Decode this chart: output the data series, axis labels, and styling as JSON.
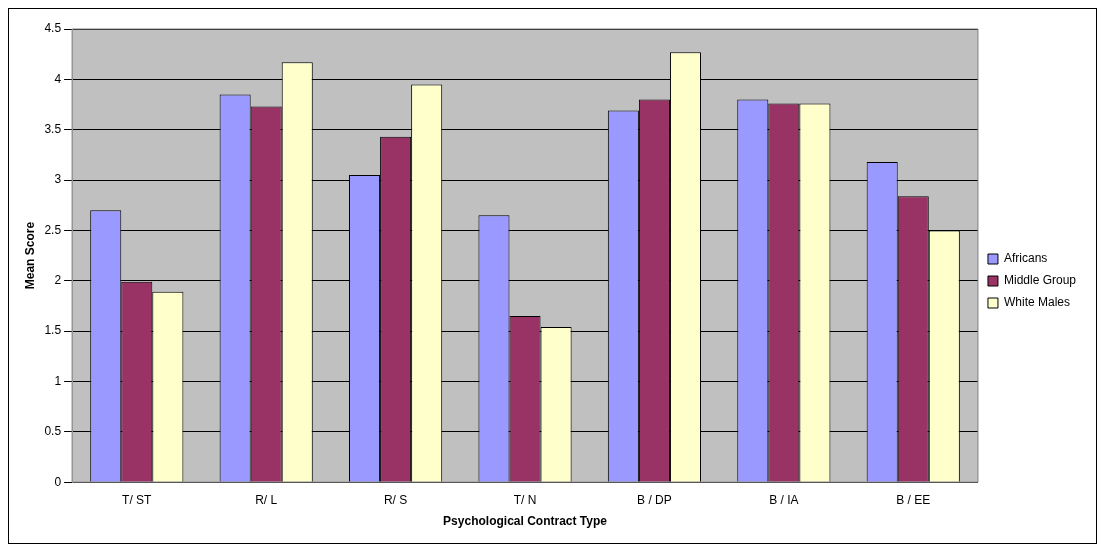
{
  "chart_data": {
    "type": "bar",
    "xlabel": "Psychological Contract Type",
    "ylabel": "Mean Score",
    "categories": [
      "T/ ST",
      "R/ L",
      "R/ S",
      "T/ N",
      "B / DP",
      "B / IA",
      "B / EE"
    ],
    "series": [
      {
        "name": "Africans",
        "color": "#9999ff",
        "values": [
          2.7,
          3.85,
          3.05,
          2.65,
          3.69,
          3.8,
          3.18
        ]
      },
      {
        "name": "Middle Group",
        "color": "#993366",
        "values": [
          1.99,
          3.73,
          3.43,
          1.65,
          3.8,
          3.76,
          2.84
        ]
      },
      {
        "name": "White Males",
        "color": "#ffffcc",
        "values": [
          1.89,
          4.17,
          3.95,
          1.54,
          4.27,
          3.76,
          2.5
        ]
      }
    ],
    "ylim": [
      0,
      4.5
    ],
    "yticks": [
      0,
      0.5,
      1,
      1.5,
      2,
      2.5,
      3,
      3.5,
      4,
      4.5
    ],
    "grid": "y",
    "legend": "right"
  }
}
